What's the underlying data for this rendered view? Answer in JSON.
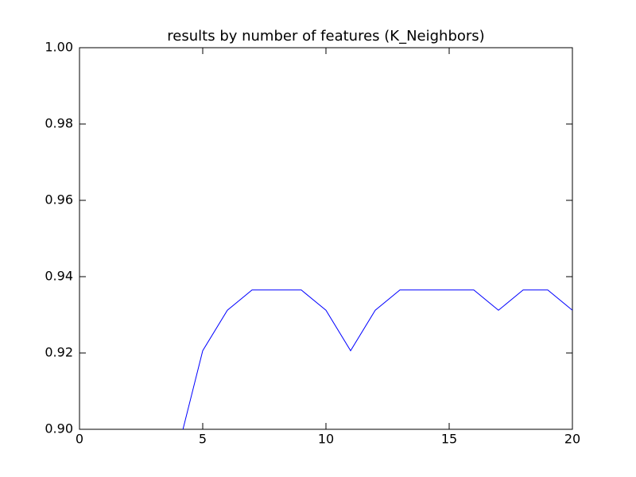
{
  "chart_data": {
    "type": "line",
    "title": "results by number of features (K_Neighbors)",
    "x": [
      4,
      5,
      6,
      7,
      8,
      9,
      10,
      11,
      12,
      13,
      14,
      15,
      16,
      17,
      18,
      19,
      20
    ],
    "series": [
      {
        "color": "#0000ff",
        "values": [
          0.8949,
          0.9206,
          0.9312,
          0.9365,
          0.9365,
          0.9365,
          0.9312,
          0.9206,
          0.9312,
          0.9365,
          0.9365,
          0.9365,
          0.9365,
          0.9312,
          0.9365,
          0.9365,
          0.9312
        ]
      }
    ],
    "xlim": [
      0,
      20
    ],
    "xticks": [
      0,
      5,
      10,
      15,
      20
    ],
    "ylim": [
      0.9,
      1.0
    ],
    "yticks": [
      {
        "value": 0.9,
        "label": "0.90"
      },
      0.92,
      0.94,
      0.96,
      0.98,
      {
        "value": 1.0,
        "label": "1.00"
      }
    ],
    "grid": false
  }
}
